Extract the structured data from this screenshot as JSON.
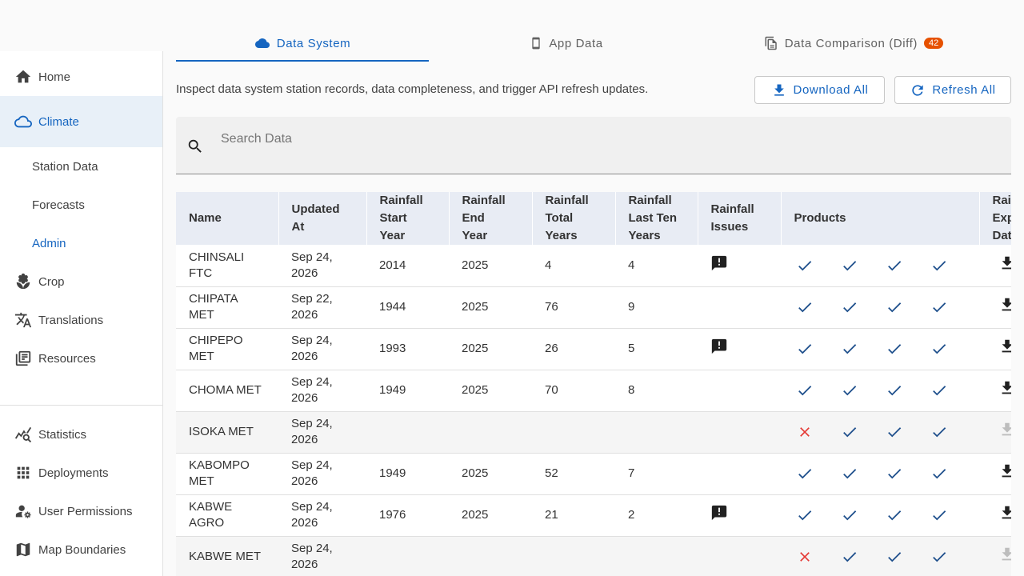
{
  "sidebar": {
    "items": [
      {
        "label": "Home",
        "icon": "home-icon"
      },
      {
        "label": "Climate",
        "icon": "cloud-icon",
        "active": true
      },
      {
        "label": "Crop",
        "icon": "crop-icon"
      },
      {
        "label": "Translations",
        "icon": "translate-icon"
      },
      {
        "label": "Resources",
        "icon": "library-icon"
      }
    ],
    "sub_items": [
      {
        "label": "Station Data"
      },
      {
        "label": "Forecasts"
      },
      {
        "label": "Admin",
        "active": true
      }
    ],
    "bottom_items": [
      {
        "label": "Statistics",
        "icon": "statistics-icon"
      },
      {
        "label": "Deployments",
        "icon": "apps-grid-icon"
      },
      {
        "label": "User Permissions",
        "icon": "user-settings-icon"
      },
      {
        "label": "Map Boundaries",
        "icon": "map-icon"
      }
    ]
  },
  "tabs": [
    {
      "label": "Data System",
      "icon": "cloud-icon",
      "active": true
    },
    {
      "label": "App Data",
      "icon": "phone-icon"
    },
    {
      "label": "Data Comparison (Diff)",
      "icon": "compare-icon",
      "badge": "42"
    }
  ],
  "description": "Inspect data system station records, data completeness, and trigger API refresh updates.",
  "actions": {
    "download_all": "Download All",
    "refresh_all": "Refresh All"
  },
  "search": {
    "placeholder": "Search Data",
    "value": ""
  },
  "colors": {
    "accent": "#1565c0",
    "badge": "#e65100",
    "error": "#e53935",
    "check": "#1e4f8c"
  },
  "table": {
    "headers": {
      "name": "Name",
      "updated": [
        "Updated",
        "At"
      ],
      "start": [
        "Rainfall",
        "Start",
        "Year"
      ],
      "end": [
        "Rainfall",
        "End",
        "Year"
      ],
      "total": [
        "Rainfall",
        "Total",
        "Years"
      ],
      "last_ten": [
        "Rainfall",
        "Last Ten",
        "Years"
      ],
      "issues": [
        "Rainfall",
        "Issues"
      ],
      "products": "Products",
      "export": [
        "Rain",
        "Exp",
        "Dat"
      ]
    },
    "rows": [
      {
        "name": "CHINSALI FTC",
        "updated": "Sep 24, 2026",
        "start": "2014",
        "end": "2025",
        "total": "4",
        "last_ten": "4",
        "issue": true,
        "products": [
          true,
          true,
          true,
          true
        ],
        "exportable": true
      },
      {
        "name": "CHIPATA MET",
        "updated": "Sep 22, 2026",
        "start": "1944",
        "end": "2025",
        "total": "76",
        "last_ten": "9",
        "issue": false,
        "products": [
          true,
          true,
          true,
          true
        ],
        "exportable": true
      },
      {
        "name": "CHIPEPO MET",
        "updated": "Sep 24, 2026",
        "start": "1993",
        "end": "2025",
        "total": "26",
        "last_ten": "5",
        "issue": true,
        "products": [
          true,
          true,
          true,
          true
        ],
        "exportable": true
      },
      {
        "name": "CHOMA MET",
        "updated": "Sep 24, 2026",
        "start": "1949",
        "end": "2025",
        "total": "70",
        "last_ten": "8",
        "issue": false,
        "products": [
          true,
          true,
          true,
          true
        ],
        "exportable": true
      },
      {
        "name": "ISOKA MET",
        "updated": "Sep 24, 2026",
        "start": "",
        "end": "",
        "total": "",
        "last_ten": "",
        "issue": false,
        "products": [
          false,
          true,
          true,
          true
        ],
        "exportable": false
      },
      {
        "name": "KABOMPO MET",
        "updated": "Sep 24, 2026",
        "start": "1949",
        "end": "2025",
        "total": "52",
        "last_ten": "7",
        "issue": false,
        "products": [
          true,
          true,
          true,
          true
        ],
        "exportable": true
      },
      {
        "name": "KABWE AGRO",
        "updated": "Sep 24, 2026",
        "start": "1976",
        "end": "2025",
        "total": "21",
        "last_ten": "2",
        "issue": true,
        "products": [
          true,
          true,
          true,
          true
        ],
        "exportable": true
      },
      {
        "name": "KABWE MET",
        "updated": "Sep 24, 2026",
        "start": "",
        "end": "",
        "total": "",
        "last_ten": "",
        "issue": false,
        "products": [
          false,
          true,
          true,
          true
        ],
        "exportable": false
      }
    ]
  }
}
